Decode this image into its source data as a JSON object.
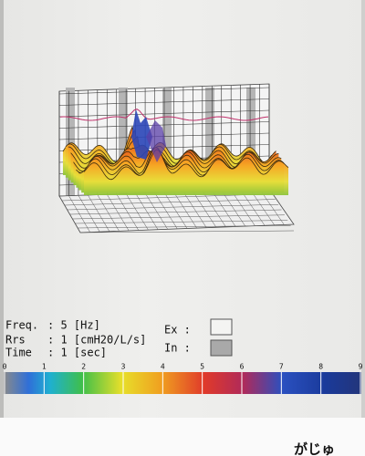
{
  "legend": {
    "freq_label": "Freq.",
    "freq_value": ": 5 [Hz]",
    "rrs_label": "Rrs",
    "rrs_value": ": 1 [cmH20/L/s]",
    "time_label": "Time",
    "time_value": ": 1 [sec]",
    "ex_label": "Ex :",
    "in_label": "In :"
  },
  "colorbar": {
    "labels": [
      0,
      1,
      2,
      3,
      4,
      5,
      6,
      7,
      8,
      9
    ]
  },
  "footer": {
    "text": "がじゅ"
  }
}
